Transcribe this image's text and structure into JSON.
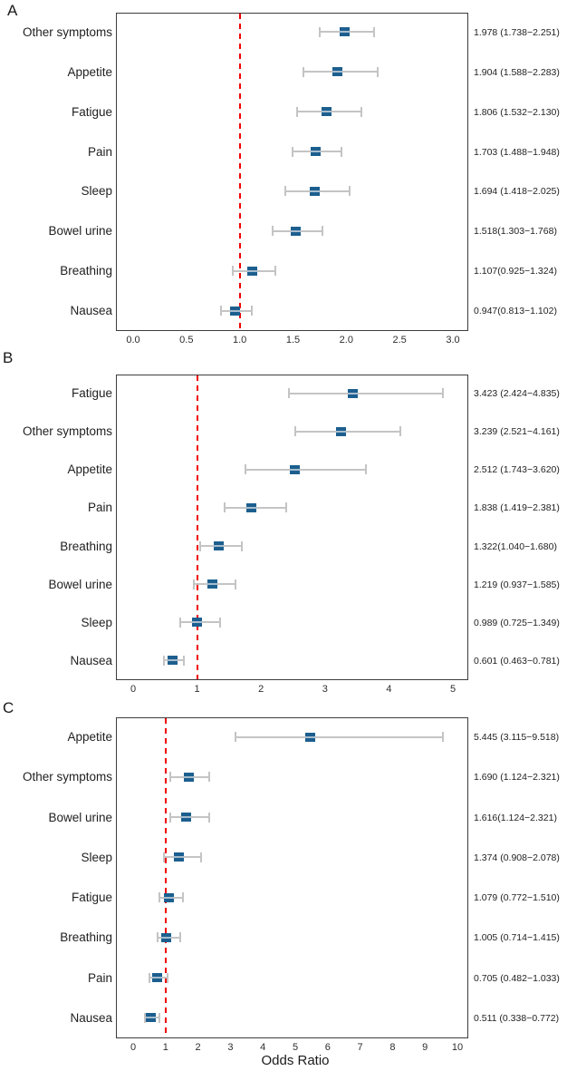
{
  "figure_title": "",
  "xlabel": "Odds Ratio",
  "colors": {
    "marker": "#1c5f8f",
    "marker_stripe": "#a7bccd",
    "ci_bar": "#c4c4c4",
    "reference_line": "#f10000",
    "plot_border": "#3d3d3d",
    "text": "#1f1f1f"
  },
  "chart_data": [
    {
      "type": "scatter",
      "variant": "forest-plot",
      "panel": "A",
      "xlim": [
        0,
        3
      ],
      "tick_labels": [
        "0.0",
        "0.5",
        "1.0",
        "1.5",
        "2.0",
        "2.5",
        "3.0"
      ],
      "tick_values": [
        0,
        0.5,
        1,
        1.5,
        2,
        2.5,
        3
      ],
      "reference_value": 1,
      "grid": false,
      "rows": [
        {
          "category": "Other symptoms",
          "or": 1.978,
          "ci_low": 1.738,
          "ci_high": 2.251,
          "text": "1.978 (1.738−2.251)"
        },
        {
          "category": "Appetite",
          "or": 1.904,
          "ci_low": 1.588,
          "ci_high": 2.283,
          "text": "1.904 (1.588−2.283)"
        },
        {
          "category": "Fatigue",
          "or": 1.806,
          "ci_low": 1.532,
          "ci_high": 2.13,
          "text": "1.806 (1.532−2.130)"
        },
        {
          "category": "Pain",
          "or": 1.703,
          "ci_low": 1.488,
          "ci_high": 1.948,
          "text": "1.703 (1.488−1.948)"
        },
        {
          "category": "Sleep",
          "or": 1.694,
          "ci_low": 1.418,
          "ci_high": 2.025,
          "text": "1.694 (1.418−2.025)"
        },
        {
          "category": "Bowel urine",
          "or": 1.518,
          "ci_low": 1.303,
          "ci_high": 1.768,
          "text": "1.518(1.303−1.768)"
        },
        {
          "category": "Breathing",
          "or": 1.107,
          "ci_low": 0.925,
          "ci_high": 1.324,
          "text": "1.107(0.925−1.324)"
        },
        {
          "category": "Nausea",
          "or": 0.947,
          "ci_low": 0.813,
          "ci_high": 1.102,
          "text": "0.947(0.813−1.102)"
        }
      ]
    },
    {
      "type": "scatter",
      "variant": "forest-plot",
      "panel": "B",
      "xlim": [
        0,
        5
      ],
      "tick_labels": [
        "0",
        "1",
        "2",
        "3",
        "4",
        "5"
      ],
      "tick_values": [
        0,
        1,
        2,
        3,
        4,
        5
      ],
      "reference_value": 1,
      "grid": false,
      "rows": [
        {
          "category": "Fatigue",
          "or": 3.423,
          "ci_low": 2.424,
          "ci_high": 4.835,
          "text": "3.423 (2.424−4.835)"
        },
        {
          "category": "Other symptoms",
          "or": 3.239,
          "ci_low": 2.521,
          "ci_high": 4.161,
          "text": "3.239 (2.521−4.161)"
        },
        {
          "category": "Appetite",
          "or": 2.512,
          "ci_low": 1.743,
          "ci_high": 3.62,
          "text": "2.512 (1.743−3.620)"
        },
        {
          "category": "Pain",
          "or": 1.838,
          "ci_low": 1.419,
          "ci_high": 2.381,
          "text": "1.838 (1.419−2.381)"
        },
        {
          "category": "Breathing",
          "or": 1.322,
          "ci_low": 1.04,
          "ci_high": 1.68,
          "text": "1.322(1.040−1.680)"
        },
        {
          "category": "Bowel urine",
          "or": 1.219,
          "ci_low": 0.937,
          "ci_high": 1.585,
          "text": "1.219 (0.937−1.585)"
        },
        {
          "category": "Sleep",
          "or": 0.989,
          "ci_low": 0.725,
          "ci_high": 1.349,
          "text": "0.989 (0.725−1.349)"
        },
        {
          "category": "Nausea",
          "or": 0.601,
          "ci_low": 0.463,
          "ci_high": 0.781,
          "text": "0.601 (0.463−0.781)"
        }
      ]
    },
    {
      "type": "scatter",
      "variant": "forest-plot",
      "panel": "C",
      "xlim": [
        0,
        10
      ],
      "tick_labels": [
        "0",
        "1",
        "2",
        "3",
        "4",
        "5",
        "6",
        "7",
        "8",
        "9",
        "10"
      ],
      "tick_values": [
        0,
        1,
        2,
        3,
        4,
        5,
        6,
        7,
        8,
        9,
        10
      ],
      "reference_value": 1,
      "xlabel": "Odds Ratio",
      "grid": false,
      "rows": [
        {
          "category": "Appetite",
          "or": 5.445,
          "ci_low": 3.115,
          "ci_high": 9.518,
          "text": "5.445 (3.115−9.518)"
        },
        {
          "category": "Other symptoms",
          "or": 1.69,
          "ci_low": 1.124,
          "ci_high": 2.321,
          "text": "1.690 (1.124−2.321)"
        },
        {
          "category": "Bowel urine",
          "or": 1.616,
          "ci_low": 1.124,
          "ci_high": 2.321,
          "text": "1.616(1.124−2.321)"
        },
        {
          "category": "Sleep",
          "or": 1.374,
          "ci_low": 0.908,
          "ci_high": 2.078,
          "text": "1.374 (0.908−2.078)"
        },
        {
          "category": "Fatigue",
          "or": 1.079,
          "ci_low": 0.772,
          "ci_high": 1.51,
          "text": "1.079 (0.772−1.510)"
        },
        {
          "category": "Breathing",
          "or": 1.005,
          "ci_low": 0.714,
          "ci_high": 1.415,
          "text": "1.005 (0.714−1.415)"
        },
        {
          "category": "Pain",
          "or": 0.705,
          "ci_low": 0.482,
          "ci_high": 1.033,
          "text": "0.705 (0.482−1.033)"
        },
        {
          "category": "Nausea",
          "or": 0.511,
          "ci_low": 0.338,
          "ci_high": 0.772,
          "text": "0.511 (0.338−0.772)"
        }
      ]
    }
  ]
}
